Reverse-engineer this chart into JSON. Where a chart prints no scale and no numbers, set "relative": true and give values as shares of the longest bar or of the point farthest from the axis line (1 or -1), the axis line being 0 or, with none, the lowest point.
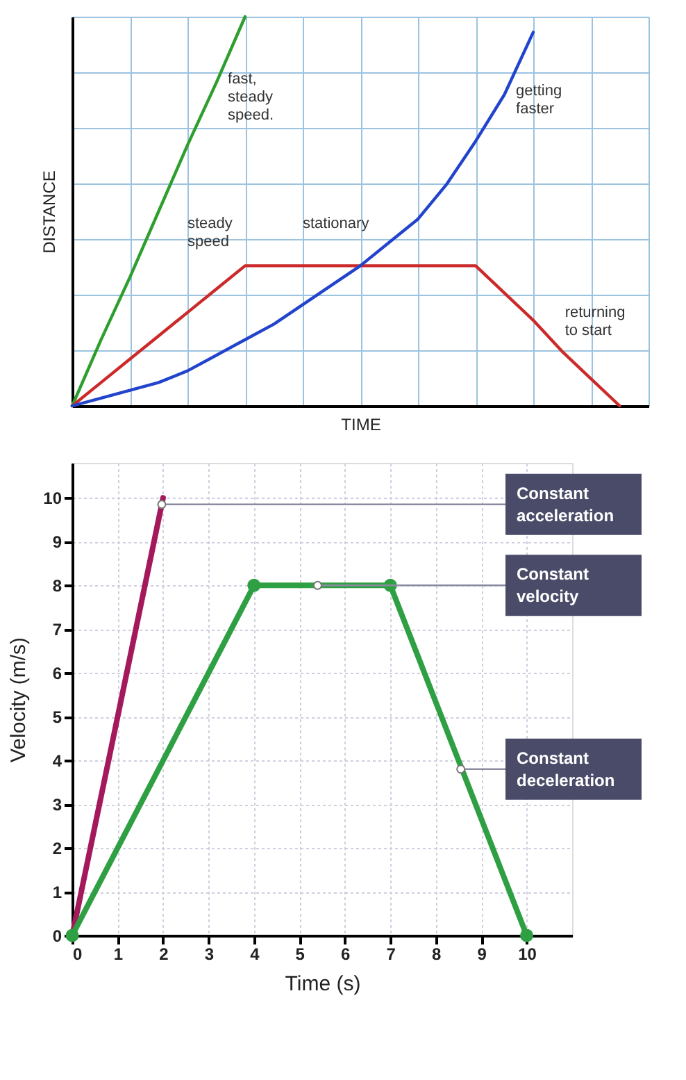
{
  "chart_data": [
    {
      "type": "line",
      "xlabel": "TIME",
      "ylabel": "DISTANCE",
      "relative": true,
      "categories": [
        null,
        null,
        null,
        null,
        null,
        null,
        null,
        null,
        null,
        null,
        null,
        null,
        null,
        null,
        null,
        null,
        null,
        null,
        null,
        null,
        null
      ],
      "tick_labels": false,
      "grid": true,
      "line_style": "solid",
      "series": [
        {
          "color": "#2e9e2e",
          "values": [
            0,
            0.17,
            0.33,
            0.5,
            0.67,
            0.83,
            1,
            null,
            null,
            null,
            null,
            null,
            null,
            null,
            null,
            null,
            null,
            null,
            null,
            null,
            null
          ]
        },
        {
          "color": "#cc2a2a",
          "values": [
            0,
            0.06,
            0.12,
            0.18,
            0.24,
            0.3,
            0.36,
            0.36,
            0.36,
            0.36,
            0.36,
            0.36,
            0.36,
            0.36,
            0.36,
            0.29,
            0.22,
            0.14,
            0.07,
            0,
            null
          ]
        },
        {
          "color": "#2244cc",
          "values": [
            0,
            0.02,
            0.04,
            0.06,
            0.09,
            0.13,
            0.17,
            0.21,
            0.26,
            0.31,
            0.36,
            0.42,
            0.48,
            0.57,
            0.68,
            0.8,
            0.96,
            null,
            null,
            null,
            null
          ]
        }
      ],
      "annotations": [
        "fast,\nsteady\nspeed.",
        "getting\nfaster",
        "steady\nspeed",
        "stationary",
        "returning\nto start"
      ]
    },
    {
      "type": "line",
      "xlabel": "Time (s)",
      "ylabel": "Velocity (m/s)",
      "xlim": [
        0,
        11
      ],
      "ylim": [
        0,
        10.8
      ],
      "xticks": [
        0,
        1,
        2,
        3,
        4,
        5,
        6,
        7,
        8,
        9,
        10
      ],
      "yticks": [
        0,
        1,
        2,
        3,
        4,
        5,
        6,
        7,
        8,
        9,
        10
      ],
      "grid": true,
      "line_style": "solid",
      "series": [
        {
          "color": "#a3195b",
          "x": [
            0,
            2
          ],
          "values": [
            0,
            10
          ],
          "marker": "none"
        },
        {
          "color": "#2ea043",
          "x": [
            0,
            4,
            7,
            10
          ],
          "values": [
            0,
            8,
            8,
            0
          ],
          "marker": "circle"
        }
      ],
      "annotations": [
        {
          "text": "Constant\nacceleration",
          "x": 1.97,
          "y": 9.85
        },
        {
          "text": "Constant\nvelocity",
          "x": 5.4,
          "y": 8
        },
        {
          "text": "Constant\ndeceleration",
          "x": 8.55,
          "y": 3.8
        }
      ]
    }
  ]
}
